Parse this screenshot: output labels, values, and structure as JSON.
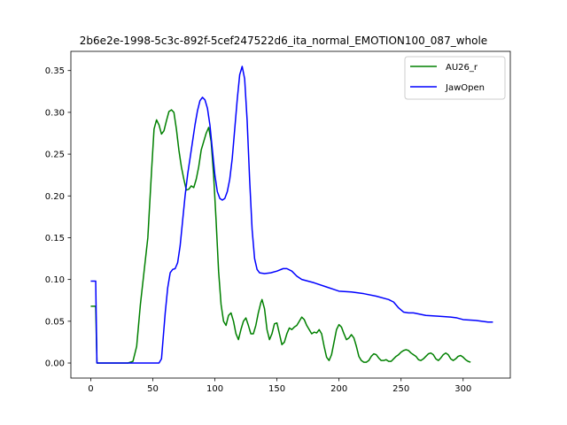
{
  "chart_data": {
    "type": "line",
    "title": "2b6e2e-1998-5c3c-892f-5cef247522d6_ita_normal_EMOTION100_087_whole",
    "xlabel": "",
    "ylabel": "",
    "xlim": [
      -16,
      338
    ],
    "ylim": [
      -0.018,
      0.373
    ],
    "xticks": [
      0,
      50,
      100,
      150,
      200,
      250,
      300
    ],
    "yticks": [
      0.0,
      0.05,
      0.1,
      0.15,
      0.2,
      0.25,
      0.3,
      0.35
    ],
    "grid": false,
    "legend_position": "top-right",
    "series": [
      {
        "name": "AU26_r",
        "color": "#008000",
        "points": [
          [
            0,
            0.068
          ],
          [
            4,
            0.068
          ],
          [
            5,
            0.0
          ],
          [
            10,
            0.0
          ],
          [
            20,
            0.0
          ],
          [
            30,
            0.0
          ],
          [
            34,
            0.002
          ],
          [
            37,
            0.02
          ],
          [
            40,
            0.07
          ],
          [
            43,
            0.11
          ],
          [
            46,
            0.15
          ],
          [
            49,
            0.23
          ],
          [
            51,
            0.28
          ],
          [
            53,
            0.291
          ],
          [
            55,
            0.285
          ],
          [
            57,
            0.274
          ],
          [
            59,
            0.278
          ],
          [
            61,
            0.29
          ],
          [
            63,
            0.301
          ],
          [
            65,
            0.303
          ],
          [
            67,
            0.3
          ],
          [
            69,
            0.28
          ],
          [
            71,
            0.255
          ],
          [
            73,
            0.235
          ],
          [
            75,
            0.22
          ],
          [
            77,
            0.207
          ],
          [
            79,
            0.208
          ],
          [
            81,
            0.212
          ],
          [
            83,
            0.21
          ],
          [
            85,
            0.22
          ],
          [
            87,
            0.235
          ],
          [
            89,
            0.255
          ],
          [
            91,
            0.265
          ],
          [
            93,
            0.275
          ],
          [
            95,
            0.282
          ],
          [
            97,
            0.265
          ],
          [
            99,
            0.225
          ],
          [
            101,
            0.17
          ],
          [
            103,
            0.11
          ],
          [
            105,
            0.07
          ],
          [
            107,
            0.05
          ],
          [
            109,
            0.045
          ],
          [
            111,
            0.057
          ],
          [
            113,
            0.06
          ],
          [
            115,
            0.05
          ],
          [
            117,
            0.035
          ],
          [
            119,
            0.028
          ],
          [
            121,
            0.04
          ],
          [
            123,
            0.05
          ],
          [
            125,
            0.054
          ],
          [
            127,
            0.045
          ],
          [
            129,
            0.035
          ],
          [
            131,
            0.035
          ],
          [
            133,
            0.045
          ],
          [
            135,
            0.06
          ],
          [
            137,
            0.072
          ],
          [
            138,
            0.076
          ],
          [
            140,
            0.065
          ],
          [
            142,
            0.04
          ],
          [
            144,
            0.028
          ],
          [
            146,
            0.035
          ],
          [
            148,
            0.047
          ],
          [
            150,
            0.048
          ],
          [
            152,
            0.035
          ],
          [
            154,
            0.022
          ],
          [
            156,
            0.025
          ],
          [
            158,
            0.035
          ],
          [
            160,
            0.042
          ],
          [
            162,
            0.04
          ],
          [
            164,
            0.043
          ],
          [
            166,
            0.045
          ],
          [
            168,
            0.05
          ],
          [
            170,
            0.055
          ],
          [
            172,
            0.052
          ],
          [
            174,
            0.045
          ],
          [
            176,
            0.04
          ],
          [
            178,
            0.035
          ],
          [
            180,
            0.037
          ],
          [
            182,
            0.036
          ],
          [
            184,
            0.04
          ],
          [
            186,
            0.035
          ],
          [
            188,
            0.02
          ],
          [
            190,
            0.007
          ],
          [
            192,
            0.003
          ],
          [
            194,
            0.01
          ],
          [
            196,
            0.025
          ],
          [
            198,
            0.04
          ],
          [
            200,
            0.046
          ],
          [
            202,
            0.043
          ],
          [
            204,
            0.035
          ],
          [
            206,
            0.028
          ],
          [
            208,
            0.03
          ],
          [
            210,
            0.034
          ],
          [
            212,
            0.03
          ],
          [
            214,
            0.02
          ],
          [
            216,
            0.008
          ],
          [
            218,
            0.003
          ],
          [
            220,
            0.001
          ],
          [
            222,
            0.001
          ],
          [
            224,
            0.003
          ],
          [
            226,
            0.008
          ],
          [
            228,
            0.011
          ],
          [
            230,
            0.01
          ],
          [
            232,
            0.006
          ],
          [
            234,
            0.003
          ],
          [
            236,
            0.003
          ],
          [
            238,
            0.004
          ],
          [
            240,
            0.002
          ],
          [
            242,
            0.002
          ],
          [
            244,
            0.005
          ],
          [
            246,
            0.008
          ],
          [
            248,
            0.01
          ],
          [
            250,
            0.013
          ],
          [
            252,
            0.015
          ],
          [
            254,
            0.016
          ],
          [
            256,
            0.015
          ],
          [
            258,
            0.012
          ],
          [
            260,
            0.01
          ],
          [
            262,
            0.008
          ],
          [
            264,
            0.004
          ],
          [
            266,
            0.003
          ],
          [
            268,
            0.005
          ],
          [
            270,
            0.008
          ],
          [
            272,
            0.011
          ],
          [
            274,
            0.012
          ],
          [
            276,
            0.01
          ],
          [
            278,
            0.005
          ],
          [
            280,
            0.003
          ],
          [
            282,
            0.006
          ],
          [
            284,
            0.01
          ],
          [
            286,
            0.012
          ],
          [
            288,
            0.01
          ],
          [
            290,
            0.005
          ],
          [
            292,
            0.003
          ],
          [
            294,
            0.005
          ],
          [
            296,
            0.008
          ],
          [
            298,
            0.009
          ],
          [
            300,
            0.007
          ],
          [
            302,
            0.004
          ],
          [
            304,
            0.002
          ],
          [
            306,
            0.001
          ]
        ]
      },
      {
        "name": "JawOpen",
        "color": "#0000ff",
        "points": [
          [
            0,
            0.098
          ],
          [
            4,
            0.098
          ],
          [
            5,
            0.0
          ],
          [
            10,
            0.0
          ],
          [
            20,
            0.0
          ],
          [
            30,
            0.0
          ],
          [
            40,
            0.0
          ],
          [
            50,
            0.0
          ],
          [
            55,
            0.0
          ],
          [
            57,
            0.005
          ],
          [
            60,
            0.06
          ],
          [
            62,
            0.09
          ],
          [
            64,
            0.108
          ],
          [
            66,
            0.112
          ],
          [
            68,
            0.113
          ],
          [
            70,
            0.12
          ],
          [
            72,
            0.14
          ],
          [
            74,
            0.17
          ],
          [
            76,
            0.2
          ],
          [
            78,
            0.225
          ],
          [
            80,
            0.245
          ],
          [
            82,
            0.265
          ],
          [
            84,
            0.285
          ],
          [
            86,
            0.302
          ],
          [
            88,
            0.314
          ],
          [
            90,
            0.318
          ],
          [
            92,
            0.315
          ],
          [
            94,
            0.305
          ],
          [
            96,
            0.285
          ],
          [
            98,
            0.255
          ],
          [
            100,
            0.225
          ],
          [
            102,
            0.205
          ],
          [
            104,
            0.197
          ],
          [
            106,
            0.195
          ],
          [
            108,
            0.197
          ],
          [
            110,
            0.205
          ],
          [
            112,
            0.22
          ],
          [
            114,
            0.245
          ],
          [
            116,
            0.28
          ],
          [
            118,
            0.315
          ],
          [
            120,
            0.345
          ],
          [
            122,
            0.355
          ],
          [
            124,
            0.34
          ],
          [
            126,
            0.29
          ],
          [
            128,
            0.22
          ],
          [
            130,
            0.16
          ],
          [
            132,
            0.125
          ],
          [
            134,
            0.112
          ],
          [
            136,
            0.108
          ],
          [
            140,
            0.107
          ],
          [
            145,
            0.108
          ],
          [
            150,
            0.11
          ],
          [
            155,
            0.113
          ],
          [
            158,
            0.113
          ],
          [
            162,
            0.11
          ],
          [
            166,
            0.104
          ],
          [
            170,
            0.1
          ],
          [
            180,
            0.096
          ],
          [
            190,
            0.091
          ],
          [
            196,
            0.088
          ],
          [
            200,
            0.086
          ],
          [
            210,
            0.085
          ],
          [
            220,
            0.083
          ],
          [
            230,
            0.08
          ],
          [
            240,
            0.076
          ],
          [
            244,
            0.073
          ],
          [
            248,
            0.066
          ],
          [
            252,
            0.061
          ],
          [
            256,
            0.06
          ],
          [
            260,
            0.06
          ],
          [
            270,
            0.057
          ],
          [
            280,
            0.056
          ],
          [
            290,
            0.055
          ],
          [
            295,
            0.054
          ],
          [
            300,
            0.052
          ],
          [
            310,
            0.051
          ],
          [
            320,
            0.049
          ],
          [
            324,
            0.049
          ]
        ]
      }
    ]
  }
}
